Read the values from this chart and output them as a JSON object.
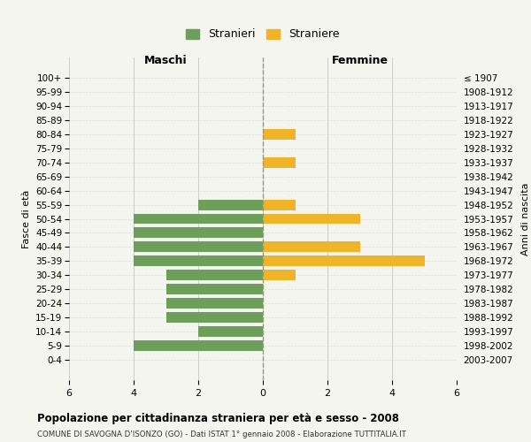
{
  "age_groups": [
    "100+",
    "95-99",
    "90-94",
    "85-89",
    "80-84",
    "75-79",
    "70-74",
    "65-69",
    "60-64",
    "55-59",
    "50-54",
    "45-49",
    "40-44",
    "35-39",
    "30-34",
    "25-29",
    "20-24",
    "15-19",
    "10-14",
    "5-9",
    "0-4"
  ],
  "birth_years": [
    "≤ 1907",
    "1908-1912",
    "1913-1917",
    "1918-1922",
    "1923-1927",
    "1928-1932",
    "1933-1937",
    "1938-1942",
    "1943-1947",
    "1948-1952",
    "1953-1957",
    "1958-1962",
    "1963-1967",
    "1968-1972",
    "1973-1977",
    "1978-1982",
    "1983-1987",
    "1988-1992",
    "1993-1997",
    "1998-2002",
    "2003-2007"
  ],
  "maschi": [
    0,
    0,
    0,
    0,
    0,
    0,
    0,
    0,
    0,
    2,
    4,
    4,
    4,
    4,
    3,
    3,
    3,
    3,
    2,
    4,
    0
  ],
  "femmine": [
    0,
    0,
    0,
    0,
    1,
    0,
    1,
    0,
    0,
    1,
    3,
    0,
    3,
    5,
    1,
    0,
    0,
    0,
    0,
    0,
    0
  ],
  "color_maschi": "#6d9e5b",
  "color_femmine": "#f0b429",
  "title": "Popolazione per cittadinanza straniera per età e sesso - 2008",
  "subtitle": "COMUNE DI SAVOGNA D'ISONZO (GO) - Dati ISTAT 1° gennaio 2008 - Elaborazione TUTTITALIA.IT",
  "xlabel_left": "Maschi",
  "xlabel_right": "Femmine",
  "ylabel_left": "Fasce di età",
  "ylabel_right": "Anni di nascita",
  "legend_maschi": "Stranieri",
  "legend_femmine": "Straniere",
  "xlim": 6,
  "background_color": "#f5f5f0",
  "grid_color": "#cccccc"
}
